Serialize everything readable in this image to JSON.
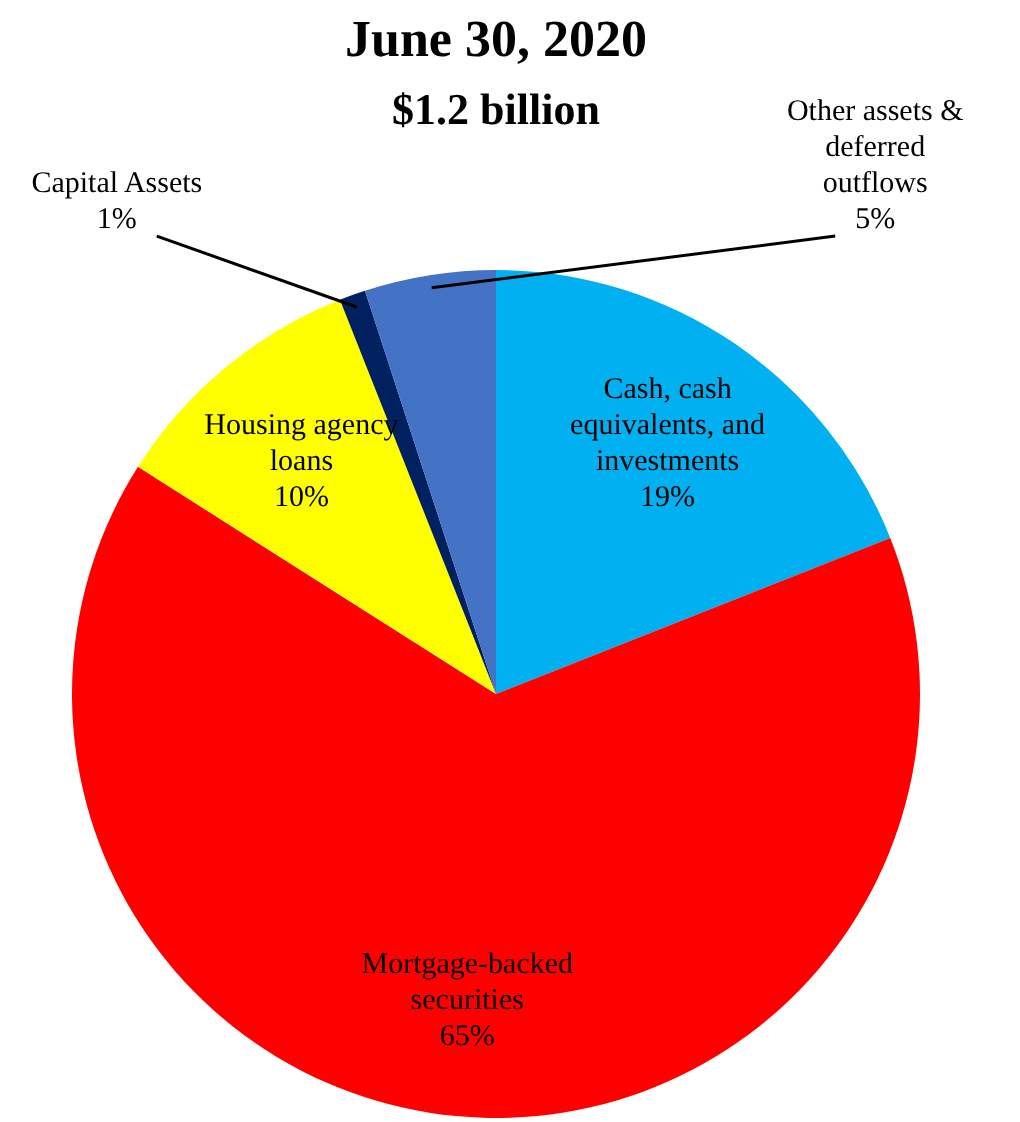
{
  "chart_data": {
    "type": "pie",
    "title": "June 30, 2020",
    "subtitle": "$1.2 billion",
    "categories": [
      "Cash, cash equivalents, and investments",
      "Mortgage-backed securities",
      "Housing agency loans",
      "Capital Assets",
      "Other assets & deferred outflows"
    ],
    "values": [
      19,
      65,
      10,
      1,
      5
    ],
    "value_labels": [
      "19%",
      "65%",
      "10%",
      "1%",
      "5%"
    ],
    "colors": [
      "#00b0f0",
      "#ff0000",
      "#ffff00",
      "#002060",
      "#4472c4"
    ],
    "legend": false
  }
}
